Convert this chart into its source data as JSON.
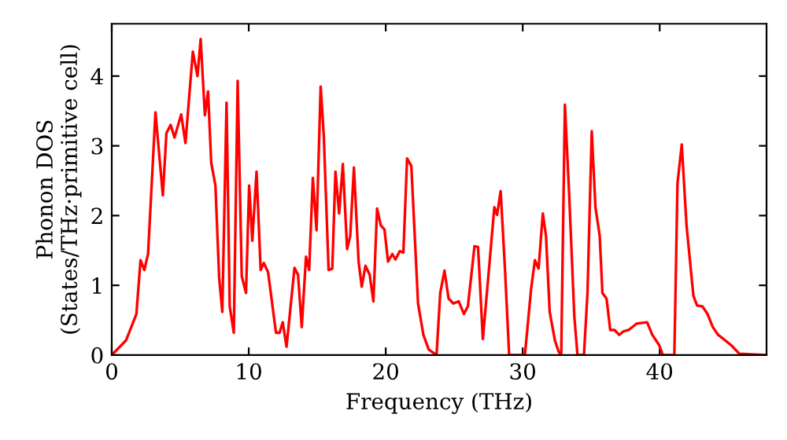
{
  "chart_data": {
    "type": "line",
    "xlabel": "Frequency (THz)",
    "ylabel": "Phonon DOS\n(States/THz·primitive cell)",
    "xlim": [
      0,
      47.8
    ],
    "ylim": [
      0,
      4.75
    ],
    "xticks": [
      0,
      10,
      20,
      30,
      40
    ],
    "yticks": [
      0,
      1,
      2,
      3,
      4
    ],
    "grid": false,
    "legend": false,
    "marker": "none",
    "line_style": "solid",
    "series": [
      {
        "color": "#ff0000",
        "x": [
          0,
          1.04,
          1.8,
          2.1,
          2.38,
          2.65,
          3.19,
          3.73,
          3.99,
          4.3,
          4.58,
          5.07,
          5.38,
          5.92,
          6.26,
          6.49,
          6.8,
          7.03,
          7.26,
          7.57,
          7.84,
          8.07,
          8.38,
          8.61,
          8.91,
          9.19,
          9.49,
          9.8,
          10.03,
          10.26,
          10.57,
          10.87,
          11.1,
          11.41,
          11.99,
          12.25,
          12.48,
          12.76,
          13.34,
          13.6,
          13.87,
          14.18,
          14.41,
          14.68,
          14.95,
          15.25,
          15.48,
          15.83,
          16.1,
          16.33,
          16.6,
          16.87,
          17.18,
          17.41,
          17.68,
          18.02,
          18.25,
          18.52,
          18.83,
          19.1,
          19.37,
          19.64,
          19.91,
          20.17,
          20.48,
          20.71,
          21.02,
          21.29,
          21.56,
          21.87,
          22.36,
          22.75,
          23.14,
          23.71,
          23.98,
          24.29,
          24.59,
          24.94,
          25.33,
          25.71,
          26.0,
          26.48,
          26.74,
          27.09,
          27.55,
          27.93,
          28.13,
          28.39,
          28.7,
          29.01,
          30.16,
          30.62,
          30.89,
          31.16,
          31.47,
          31.7,
          31.97,
          32.35,
          32.62,
          32.81,
          33.08,
          33.39,
          33.77,
          34.0,
          34.47,
          34.73,
          35.04,
          35.31,
          35.62,
          35.82,
          36.12,
          36.39,
          36.7,
          37.04,
          37.35,
          37.73,
          38.31,
          39.08,
          39.46,
          39.97,
          40.23,
          41.07,
          41.3,
          41.61,
          41.96,
          42.46,
          42.73,
          43.11,
          43.49,
          43.88,
          44.27,
          45.23,
          45.81,
          47.8
        ],
        "values": [
          0,
          0.21,
          0.59,
          1.36,
          1.22,
          1.45,
          3.48,
          2.29,
          3.18,
          3.3,
          3.12,
          3.45,
          3.04,
          4.35,
          4.0,
          4.53,
          3.44,
          3.78,
          2.76,
          2.43,
          1.11,
          0.62,
          3.62,
          0.7,
          0.32,
          3.93,
          1.13,
          0.89,
          2.43,
          1.64,
          2.63,
          1.22,
          1.32,
          1.19,
          0.32,
          0.32,
          0.47,
          0.12,
          1.25,
          1.15,
          0.4,
          1.41,
          1.22,
          2.54,
          1.79,
          3.85,
          3.14,
          1.22,
          1.24,
          2.63,
          2.03,
          2.74,
          1.52,
          1.71,
          2.69,
          1.34,
          0.98,
          1.28,
          1.15,
          0.77,
          2.1,
          1.86,
          1.8,
          1.34,
          1.45,
          1.37,
          1.49,
          1.47,
          2.82,
          2.71,
          0.74,
          0.29,
          0.08,
          0,
          0.89,
          1.21,
          0.81,
          0.74,
          0.77,
          0.59,
          0.7,
          1.56,
          1.55,
          0.23,
          1.26,
          2.12,
          2.01,
          2.35,
          1.26,
          0,
          0,
          0.96,
          1.36,
          1.24,
          2.03,
          1.71,
          0.62,
          0.21,
          0.05,
          0,
          3.59,
          2.31,
          0.55,
          0,
          0,
          0.89,
          3.21,
          2.12,
          1.71,
          0.89,
          0.81,
          0.36,
          0.36,
          0.29,
          0.34,
          0.36,
          0.45,
          0.47,
          0.29,
          0.14,
          0,
          0,
          2.46,
          3.02,
          1.86,
          0.85,
          0.71,
          0.7,
          0.59,
          0.4,
          0.29,
          0.14,
          0.02,
          0
        ]
      }
    ]
  }
}
